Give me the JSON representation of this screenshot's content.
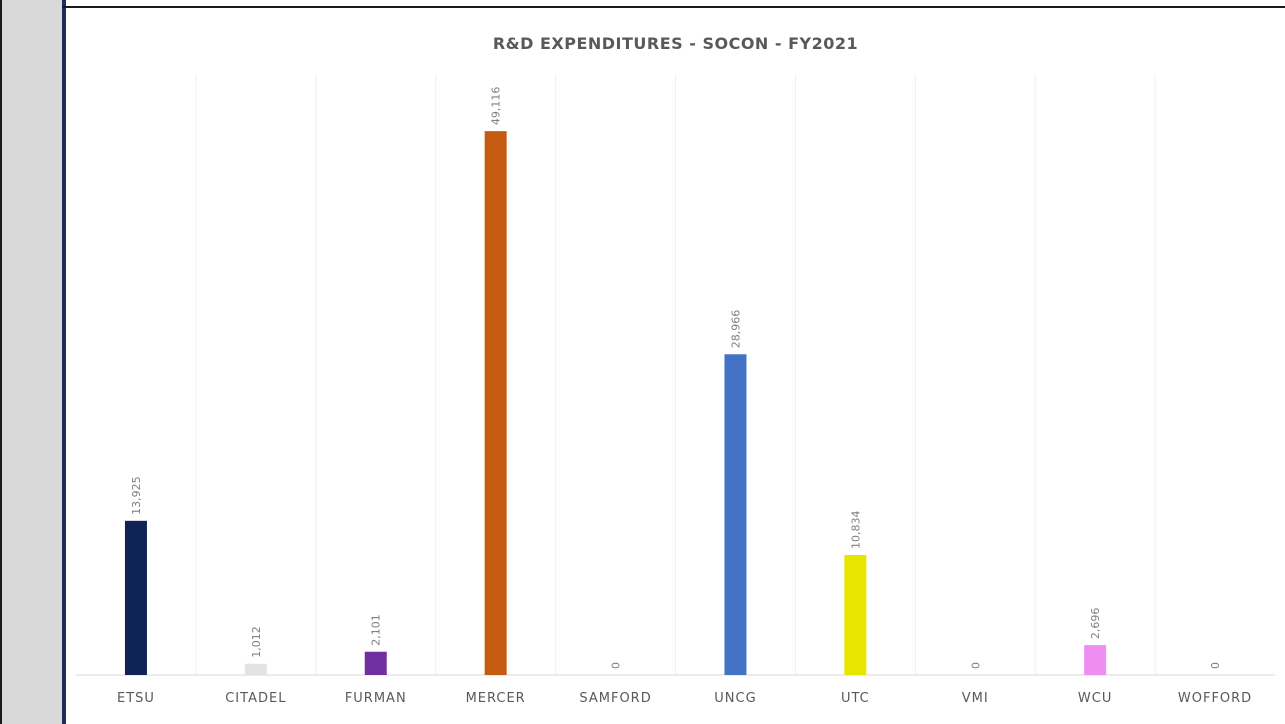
{
  "chart_data": {
    "type": "bar",
    "title": "R&D EXPENDITURES - SOCON - FY2021",
    "xlabel": "",
    "ylabel": "",
    "categories": [
      "ETSU",
      "CITADEL",
      "FURMAN",
      "MERCER",
      "SAMFORD",
      "UNCG",
      "UTC",
      "VMI",
      "WCU",
      "WOFFORD"
    ],
    "values": [
      13925,
      1012,
      2101,
      49116,
      0,
      28966,
      10834,
      0,
      2696,
      0
    ],
    "value_labels": [
      "13,925",
      "1,012",
      "2,101",
      "49,116",
      "0",
      "28,966",
      "10,834",
      "0",
      "2,696",
      "0"
    ],
    "colors": [
      "#0f2356",
      "#e3e3e3",
      "#7030a0",
      "#c55a11",
      "#bfbfbf",
      "#4472c4",
      "#e6e600",
      "#bfbfbf",
      "#ee8ef0",
      "#bfbfbf"
    ],
    "ylim": [
      0,
      55000
    ],
    "grid": false,
    "legend": "none"
  }
}
